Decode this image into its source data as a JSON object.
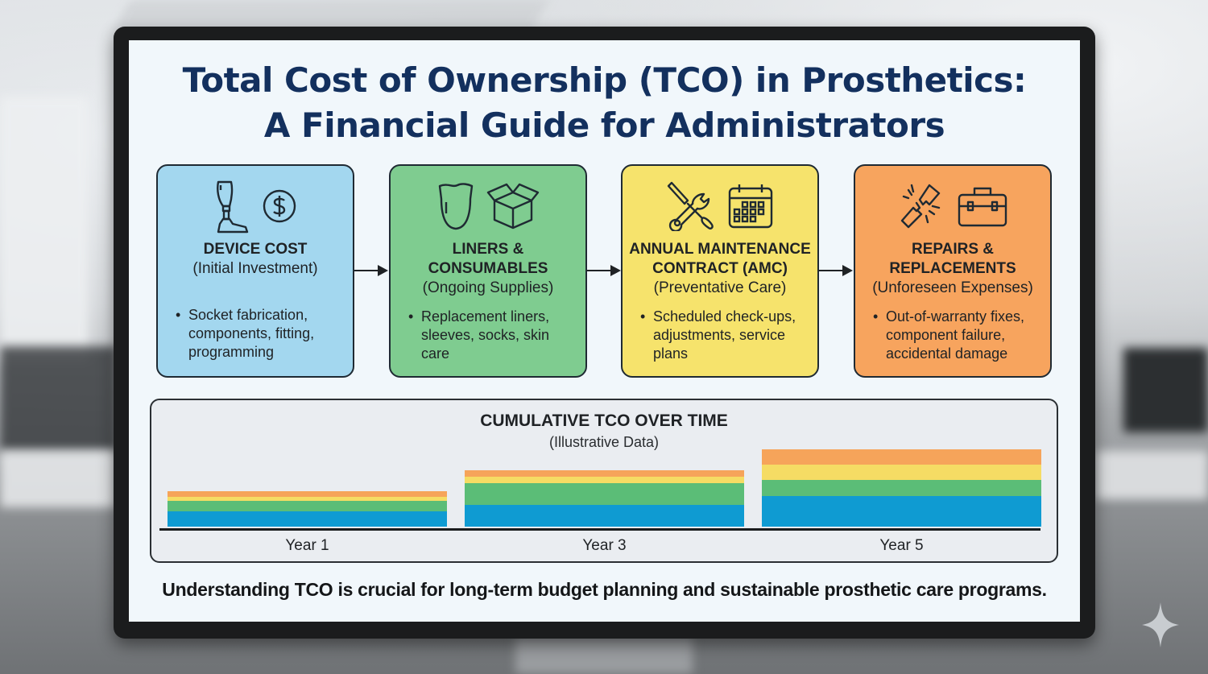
{
  "header": {
    "title_line1": "Total Cost of Ownership (TCO) in Prosthetics:",
    "title_line2": "A Financial Guide for Administrators"
  },
  "cards": [
    {
      "heading_line1": "DEVICE COST",
      "heading_line2": "",
      "subtitle": "(Initial Investment)",
      "bullet_lines": [
        "Socket fabrication,",
        "components, fitting,",
        "programming"
      ],
      "icons": [
        "prosthetic-leg-icon",
        "dollar-coin-icon"
      ],
      "color": "#a3d7ef"
    },
    {
      "heading_line1": "LINERS &",
      "heading_line2": "CONSUMABLES",
      "subtitle": "(Ongoing Supplies)",
      "bullet_lines": [
        "Replacement liners,",
        "sleeves, socks, skin",
        "care"
      ],
      "icons": [
        "liner-sleeve-icon",
        "open-box-icon"
      ],
      "color": "#7fcc90"
    },
    {
      "heading_line1": "ANNUAL MAINTENANCE",
      "heading_line2": "CONTRACT (AMC)",
      "subtitle": "(Preventative Care)",
      "bullet_lines": [
        "Scheduled check-ups,",
        "adjustments, service",
        "plans"
      ],
      "icons": [
        "wrench-screwdriver-icon",
        "calendar-icon"
      ],
      "color": "#f6e36c"
    },
    {
      "heading_line1": "REPAIRS &",
      "heading_line2": "REPLACEMENTS",
      "subtitle": "(Unforeseen Expenses)",
      "bullet_lines": [
        "Out-of-warranty fixes,",
        "component failure,",
        "accidental damage"
      ],
      "icons": [
        "broken-part-icon",
        "toolbox-icon"
      ],
      "color": "#f7a45e"
    }
  ],
  "chart": {
    "title": "CUMULATIVE TCO OVER TIME",
    "subtitle": "(Illustrative Data)"
  },
  "chart_data": {
    "type": "bar",
    "stacked": true,
    "title": "CUMULATIVE TCO OVER TIME",
    "subtitle": "(Illustrative Data)",
    "xlabel": "",
    "ylabel": "",
    "categories": [
      "Year 1",
      "Year 3",
      "Year 5"
    ],
    "series": [
      {
        "name": "Device Cost",
        "color": "#0f9bd2",
        "values": [
          19,
          27,
          38
        ]
      },
      {
        "name": "Liners & Consumables",
        "color": "#5bbd77",
        "values": [
          13,
          27,
          20
        ]
      },
      {
        "name": "Annual Maintenance Contract (AMC)",
        "color": "#f5dc64",
        "values": [
          5,
          8,
          19
        ]
      },
      {
        "name": "Repairs & Replacements",
        "color": "#f6a45a",
        "values": [
          7,
          8,
          19
        ]
      }
    ],
    "totals": [
      44,
      70,
      96
    ],
    "units": "relative (illustrative, no axis values shown)",
    "ylim": [
      0,
      100
    ],
    "grid": false,
    "legend": "none"
  },
  "footer": {
    "text": "Understanding TCO is crucial for long-term budget planning and sustainable prosthetic care programs."
  }
}
